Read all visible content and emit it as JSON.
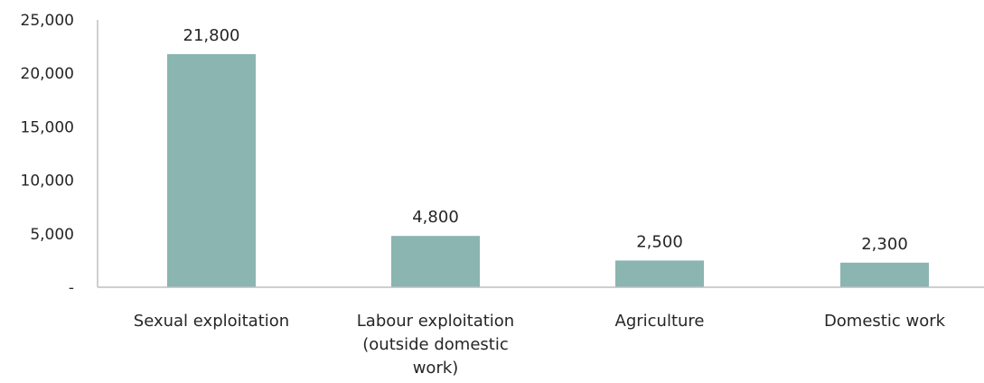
{
  "chart_data": {
    "type": "bar",
    "title": "",
    "xlabel": "",
    "ylabel": "",
    "categories": [
      [
        "Sexual exploitation"
      ],
      [
        "Labour exploitation",
        "(outside domestic",
        "work)"
      ],
      [
        "Agriculture"
      ],
      [
        "Domestic work"
      ]
    ],
    "values": [
      21800,
      4800,
      2500,
      2300
    ],
    "data_labels": [
      "21,800",
      "4,800",
      "2,500",
      "2,300"
    ],
    "ylim": [
      0,
      25000
    ],
    "yticks": [
      0,
      5000,
      10000,
      15000,
      20000,
      25000
    ],
    "ytick_labels": [
      "-",
      "5,000",
      "10,000",
      "15,000",
      "20,000",
      "25,000"
    ],
    "grid": false,
    "legend": "none",
    "bar_color": "#8ab5b0",
    "axis_color": "#bfbfbf",
    "text_color": "#262626"
  }
}
